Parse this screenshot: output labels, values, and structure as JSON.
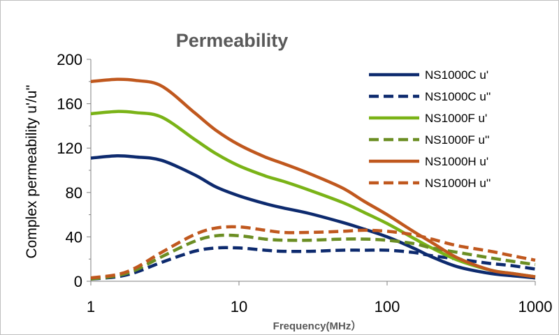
{
  "chart_data": {
    "type": "line",
    "title": "Permeability",
    "xlabel": "Frequency(MHz）",
    "ylabel": "Complex permeability u'/u''",
    "xscale": "log",
    "xlim": [
      1,
      1000
    ],
    "ylim": [
      0,
      200
    ],
    "x_ticks": [
      "1",
      "10",
      "100",
      "1000"
    ],
    "y_ticks": [
      "0",
      "40",
      "80",
      "120",
      "160",
      "200"
    ],
    "legend_position": "top-right",
    "grid": false,
    "series": [
      {
        "name": "NS1000C u'",
        "color": "#0d2a6e",
        "dash": "solid",
        "x": [
          1,
          1.5,
          2,
          3,
          5,
          7,
          10,
          15,
          20,
          30,
          50,
          70,
          100,
          150,
          200,
          300,
          500,
          700,
          1000
        ],
        "y": [
          111,
          113,
          112,
          109,
          96,
          85,
          77,
          70,
          66,
          61,
          53,
          47,
          40,
          30,
          22,
          13,
          7,
          5,
          3
        ]
      },
      {
        "name": "NS1000C u''",
        "color": "#0d2a6e",
        "dash": "dashed",
        "x": [
          1,
          1.5,
          2,
          3,
          5,
          7,
          10,
          15,
          20,
          30,
          50,
          70,
          100,
          150,
          200,
          300,
          500,
          700,
          1000
        ],
        "y": [
          2,
          4,
          8,
          17,
          27,
          30,
          30,
          28,
          27,
          27,
          28,
          28,
          28,
          26,
          23,
          20,
          16,
          14,
          11
        ]
      },
      {
        "name": "NS1000F u'",
        "color": "#7ab317",
        "dash": "solid",
        "x": [
          1,
          1.5,
          2,
          3,
          5,
          7,
          10,
          15,
          20,
          30,
          50,
          70,
          100,
          150,
          200,
          300,
          500,
          700,
          1000
        ],
        "y": [
          151,
          153,
          152,
          148,
          128,
          115,
          104,
          95,
          90,
          82,
          71,
          62,
          52,
          39,
          30,
          19,
          10,
          7,
          4
        ]
      },
      {
        "name": "NS1000F u''",
        "color": "#6b8e23",
        "dash": "dashed",
        "x": [
          1,
          1.5,
          2,
          3,
          5,
          7,
          10,
          15,
          20,
          30,
          50,
          70,
          100,
          150,
          200,
          300,
          500,
          700,
          1000
        ],
        "y": [
          2,
          5,
          10,
          22,
          36,
          41,
          41,
          38,
          37,
          37,
          38,
          38,
          37,
          34,
          30,
          26,
          21,
          18,
          15
        ]
      },
      {
        "name": "NS1000H u'",
        "color": "#c0581e",
        "dash": "solid",
        "x": [
          1,
          1.5,
          2,
          3,
          5,
          7,
          10,
          15,
          20,
          30,
          50,
          70,
          100,
          150,
          200,
          300,
          500,
          700,
          1000
        ],
        "y": [
          180,
          182,
          181,
          176,
          152,
          136,
          123,
          112,
          106,
          97,
          84,
          72,
          60,
          45,
          35,
          21,
          10,
          7,
          4
        ]
      },
      {
        "name": "NS1000H u''",
        "color": "#c0581e",
        "dash": "dashed",
        "x": [
          1,
          1.5,
          2,
          3,
          5,
          7,
          10,
          15,
          20,
          30,
          50,
          70,
          100,
          150,
          200,
          300,
          500,
          700,
          1000
        ],
        "y": [
          3,
          6,
          12,
          26,
          42,
          48,
          49,
          46,
          44,
          44,
          45,
          46,
          45,
          42,
          38,
          32,
          27,
          23,
          19
        ]
      }
    ]
  }
}
